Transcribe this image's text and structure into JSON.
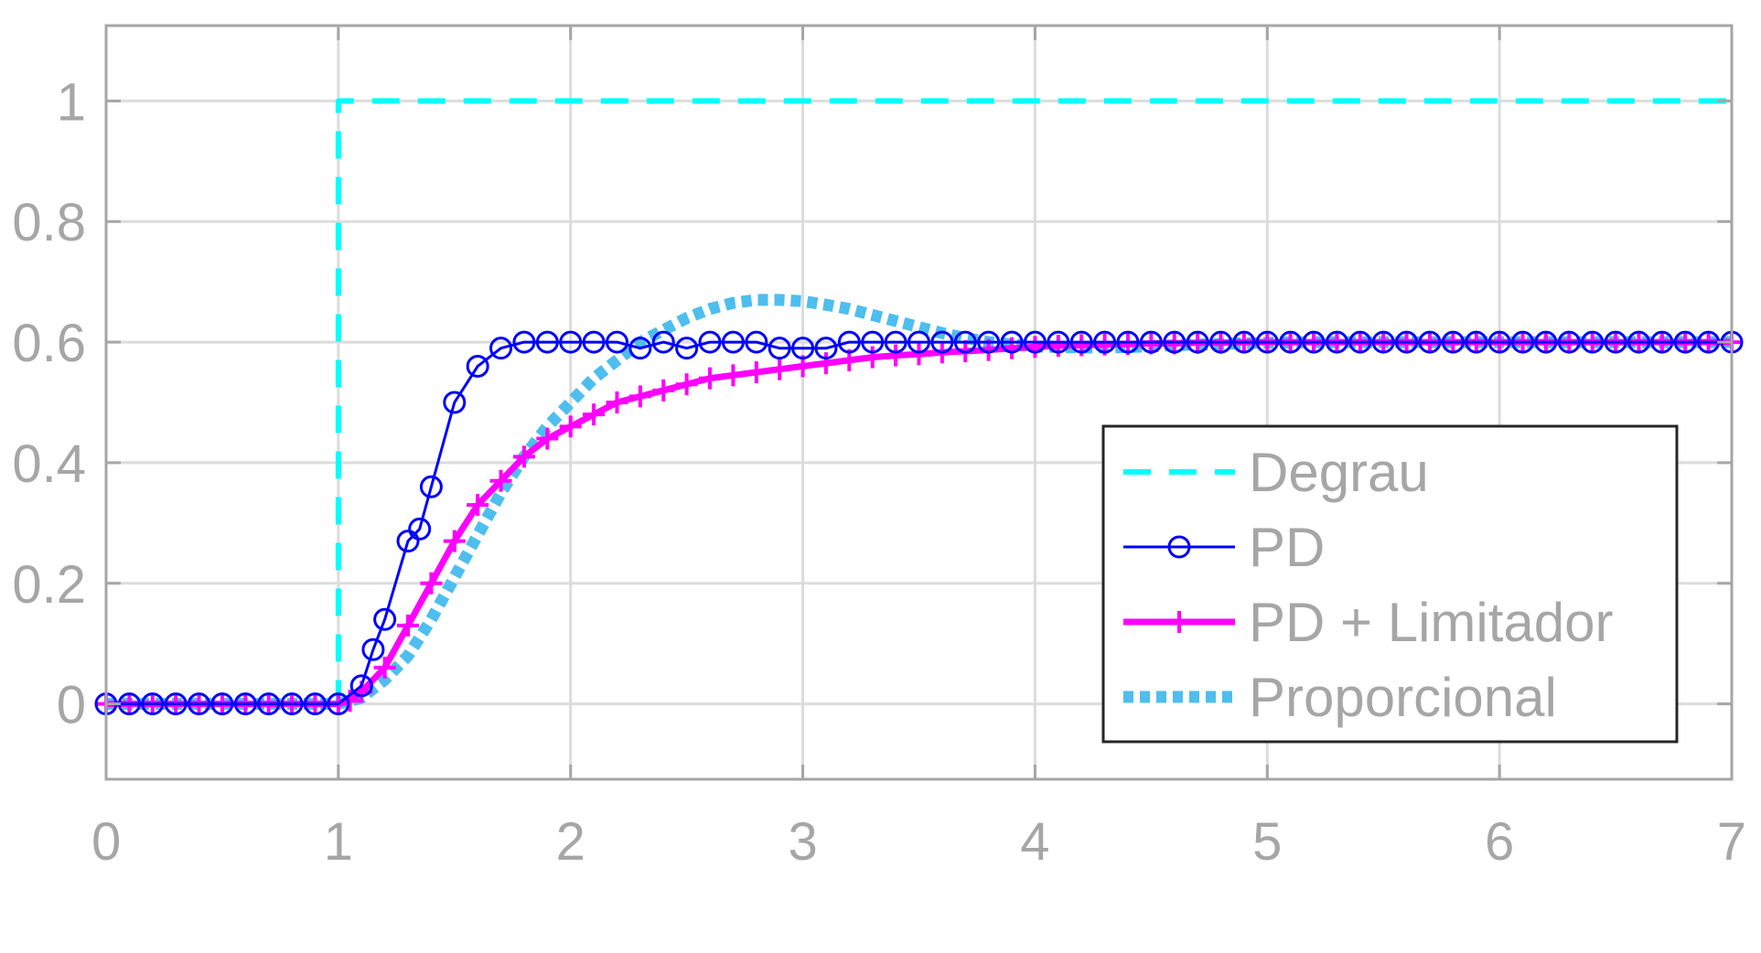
{
  "chart_data": {
    "type": "line",
    "title": "",
    "xlabel": "",
    "ylabel": "",
    "xlim": [
      0,
      7
    ],
    "ylim": [
      -0.125,
      1.125
    ],
    "xticks": [
      0,
      1,
      2,
      3,
      4,
      5,
      6,
      7
    ],
    "yticks": [
      0,
      0.2,
      0.4,
      0.6,
      0.8,
      1
    ],
    "xtick_labels": [
      "0",
      "1",
      "2",
      "3",
      "4",
      "5",
      "6",
      "7"
    ],
    "ytick_labels": [
      "0",
      "0.2",
      "0.4",
      "0.6",
      "0.8",
      "1"
    ],
    "grid": true,
    "legend_position": "bottom-right",
    "series": [
      {
        "name": "Degrau",
        "color": "#00ffff",
        "style": "dashed",
        "marker": "none",
        "x": [
          0,
          1,
          1,
          7
        ],
        "y": [
          0,
          0,
          1,
          1
        ]
      },
      {
        "name": "PD",
        "color": "#0000ff",
        "style": "solid",
        "marker": "circle",
        "x": [
          0,
          0.1,
          0.2,
          0.3,
          0.4,
          0.5,
          0.6,
          0.7,
          0.8,
          0.9,
          1.0,
          1.1,
          1.15,
          1.2,
          1.3,
          1.35,
          1.4,
          1.5,
          1.6,
          1.7,
          1.8,
          1.9,
          2.0,
          2.1,
          2.2,
          2.3,
          2.4,
          2.5,
          2.6,
          2.7,
          2.8,
          2.9,
          3.0,
          3.1,
          3.2,
          3.3,
          3.4,
          3.5,
          3.6,
          3.7,
          3.8,
          3.9,
          4.0,
          4.1,
          4.2,
          4.3,
          4.4,
          4.5,
          4.6,
          4.7,
          4.8,
          4.9,
          5.0,
          5.1,
          5.2,
          5.3,
          5.4,
          5.5,
          5.6,
          5.7,
          5.8,
          5.9,
          6.0,
          6.1,
          6.2,
          6.3,
          6.4,
          6.5,
          6.6,
          6.7,
          6.8,
          6.9,
          7.0
        ],
        "y": [
          0,
          0,
          0,
          0,
          0,
          0,
          0,
          0,
          0,
          0,
          0,
          0.03,
          0.09,
          0.14,
          0.27,
          0.29,
          0.36,
          0.5,
          0.56,
          0.59,
          0.6,
          0.6,
          0.6,
          0.6,
          0.6,
          0.59,
          0.6,
          0.59,
          0.6,
          0.6,
          0.6,
          0.59,
          0.59,
          0.59,
          0.6,
          0.6,
          0.6,
          0.6,
          0.6,
          0.6,
          0.6,
          0.6,
          0.6,
          0.6,
          0.6,
          0.6,
          0.6,
          0.6,
          0.6,
          0.6,
          0.6,
          0.6,
          0.6,
          0.6,
          0.6,
          0.6,
          0.6,
          0.6,
          0.6,
          0.6,
          0.6,
          0.6,
          0.6,
          0.6,
          0.6,
          0.6,
          0.6,
          0.6,
          0.6,
          0.6,
          0.6,
          0.6,
          0.6
        ]
      },
      {
        "name": "PD + Limitador",
        "color": "#ff00ff",
        "style": "solid",
        "marker": "plus",
        "x": [
          0,
          0.1,
          0.2,
          0.3,
          0.4,
          0.5,
          0.6,
          0.7,
          0.8,
          0.9,
          1.0,
          1.05,
          1.1,
          1.2,
          1.3,
          1.4,
          1.5,
          1.6,
          1.7,
          1.8,
          1.9,
          2.0,
          2.1,
          2.2,
          2.3,
          2.4,
          2.5,
          2.6,
          2.7,
          2.8,
          2.9,
          3.0,
          3.1,
          3.2,
          3.3,
          3.4,
          3.5,
          3.6,
          3.7,
          3.8,
          3.9,
          4.0,
          4.1,
          4.2,
          4.3,
          4.4,
          4.5,
          4.6,
          4.7,
          4.8,
          4.9,
          5.0,
          5.1,
          5.2,
          5.3,
          5.4,
          5.5,
          5.6,
          5.7,
          5.8,
          5.9,
          6.0,
          6.1,
          6.2,
          6.3,
          6.4,
          6.5,
          6.6,
          6.7,
          6.8,
          6.9,
          7.0
        ],
        "y": [
          0,
          0,
          0,
          0,
          0,
          0,
          0,
          0,
          0,
          0,
          0,
          0.005,
          0.02,
          0.06,
          0.13,
          0.2,
          0.27,
          0.33,
          0.37,
          0.41,
          0.44,
          0.46,
          0.48,
          0.5,
          0.51,
          0.52,
          0.53,
          0.54,
          0.545,
          0.55,
          0.555,
          0.56,
          0.565,
          0.57,
          0.575,
          0.578,
          0.58,
          0.583,
          0.585,
          0.587,
          0.59,
          0.592,
          0.594,
          0.595,
          0.596,
          0.597,
          0.598,
          0.598,
          0.599,
          0.599,
          0.6,
          0.6,
          0.6,
          0.6,
          0.6,
          0.6,
          0.6,
          0.6,
          0.6,
          0.6,
          0.6,
          0.6,
          0.6,
          0.6,
          0.6,
          0.6,
          0.6,
          0.6,
          0.6,
          0.6,
          0.6,
          0.6
        ]
      },
      {
        "name": "Proporcional",
        "color": "#4dbeee",
        "style": "dotted",
        "marker": "none",
        "x": [
          0,
          0.1,
          0.2,
          0.3,
          0.4,
          0.5,
          0.6,
          0.7,
          0.8,
          0.9,
          1.0,
          1.1,
          1.2,
          1.3,
          1.4,
          1.5,
          1.6,
          1.7,
          1.8,
          1.9,
          2.0,
          2.1,
          2.2,
          2.3,
          2.4,
          2.5,
          2.6,
          2.7,
          2.8,
          2.9,
          3.0,
          3.1,
          3.2,
          3.3,
          3.4,
          3.5,
          3.6,
          3.7,
          3.8,
          3.9,
          4.0,
          4.1,
          4.2,
          4.3,
          4.4,
          4.5,
          4.6,
          4.7,
          4.8,
          4.9,
          5.0,
          5.2,
          5.4,
          5.6,
          5.8,
          6.0,
          6.2,
          6.4,
          6.6,
          6.8,
          7.0
        ],
        "y": [
          0,
          0,
          0,
          0,
          0,
          0,
          0,
          0,
          0,
          0,
          0,
          0.01,
          0.04,
          0.08,
          0.14,
          0.21,
          0.28,
          0.35,
          0.41,
          0.46,
          0.5,
          0.54,
          0.57,
          0.6,
          0.62,
          0.64,
          0.655,
          0.665,
          0.67,
          0.67,
          0.668,
          0.662,
          0.655,
          0.645,
          0.635,
          0.625,
          0.615,
          0.607,
          0.6,
          0.596,
          0.593,
          0.592,
          0.591,
          0.591,
          0.592,
          0.593,
          0.595,
          0.596,
          0.597,
          0.598,
          0.599,
          0.6,
          0.6,
          0.6,
          0.6,
          0.6,
          0.6,
          0.6,
          0.6,
          0.6,
          0.6
        ]
      }
    ]
  }
}
